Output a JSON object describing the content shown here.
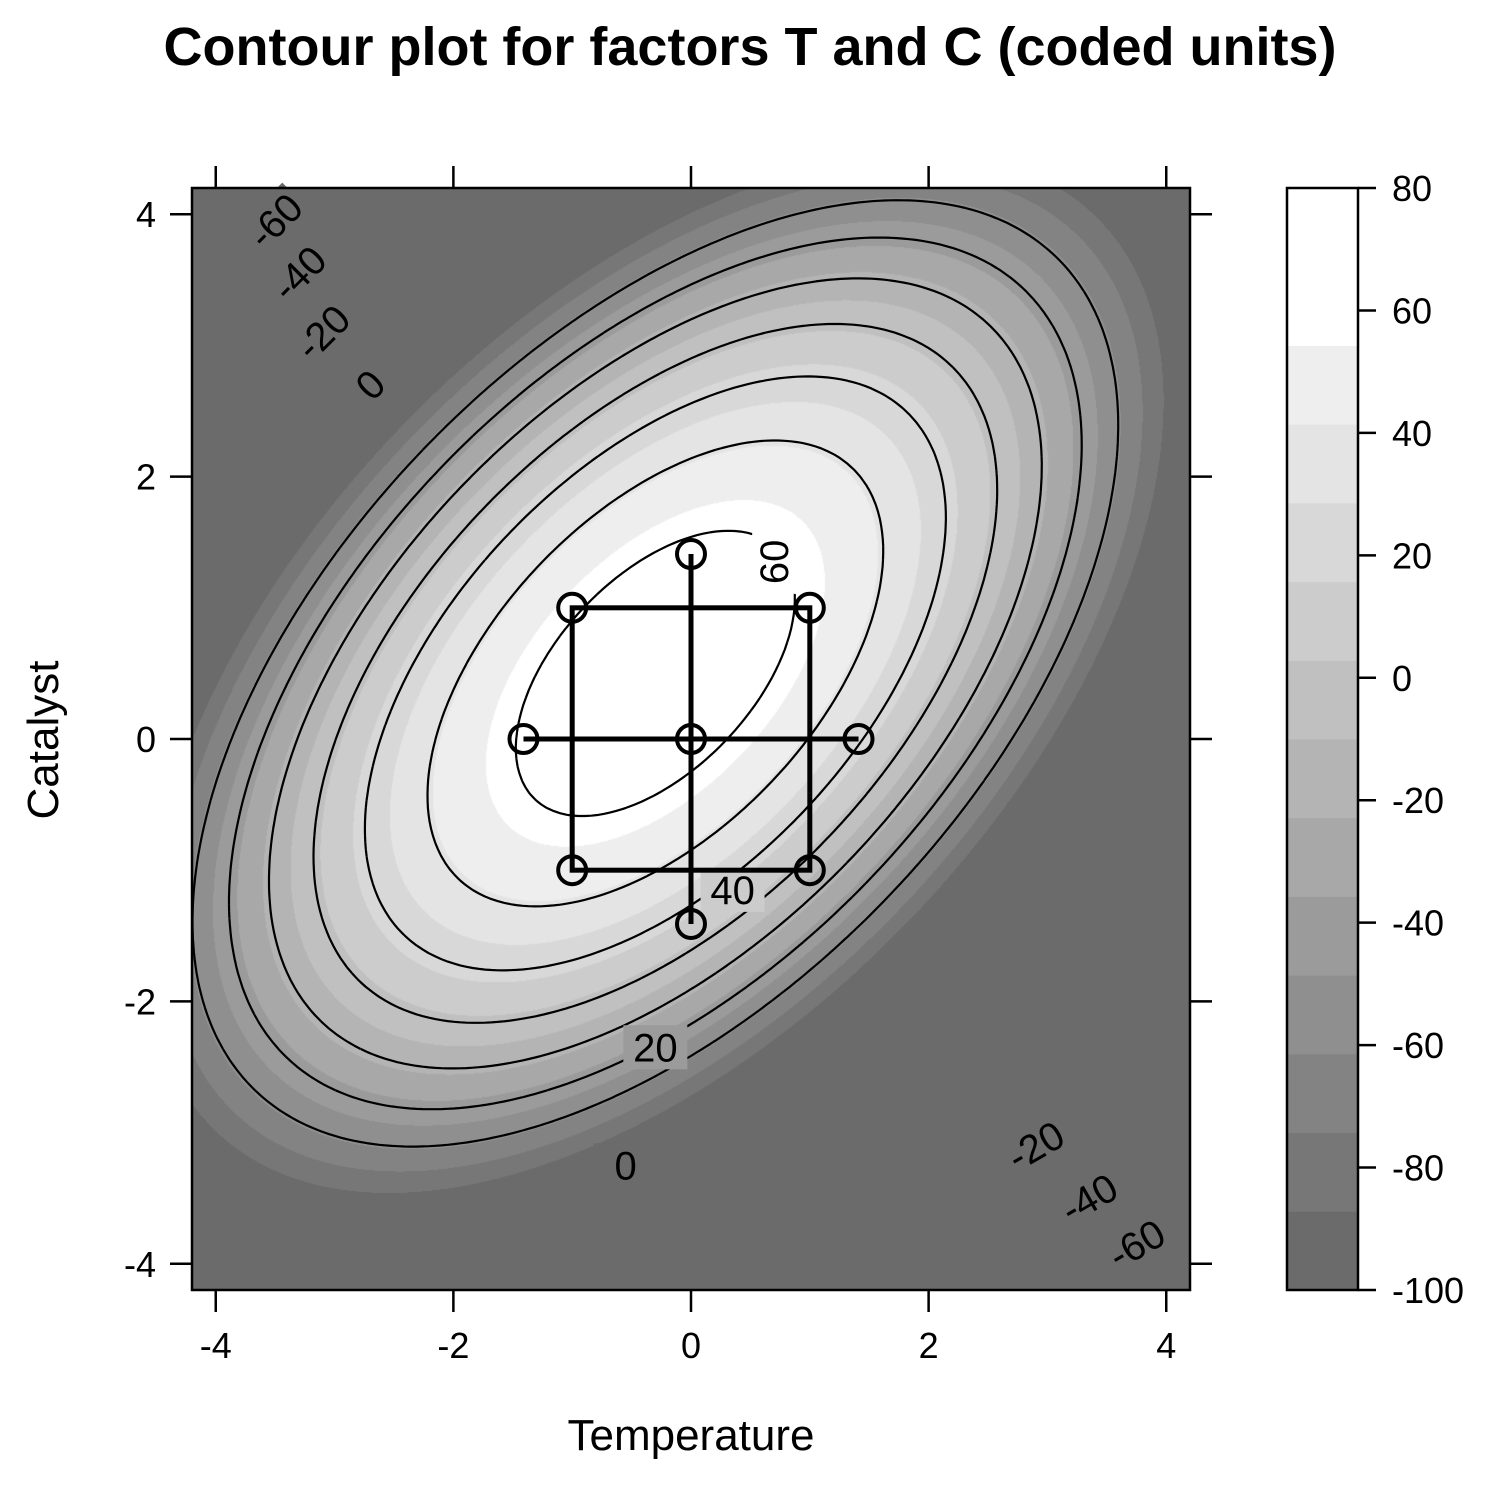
{
  "chart_data": {
    "type": "contour",
    "title": "Contour plot for factors T and C (coded units)",
    "xlabel": "Temperature",
    "ylabel": "Catalyst",
    "xlim": [
      -4.2,
      4.2
    ],
    "ylim": [
      -4.2,
      4.2
    ],
    "x_ticks": [
      -4,
      -2,
      0,
      2,
      4
    ],
    "y_ticks": [
      -4,
      -2,
      0,
      2,
      4
    ],
    "x_tick_labels": [
      "-4",
      "-2",
      "0",
      "2",
      "4"
    ],
    "y_tick_labels": [
      "-4",
      "-2",
      "0",
      "2",
      "4"
    ],
    "colorbar": {
      "range": [
        -100,
        80
      ],
      "ticks": [
        80,
        60,
        40,
        20,
        0,
        -20,
        -40,
        -60,
        -80,
        -100
      ],
      "tick_labels": [
        "80",
        "60",
        "40",
        "20",
        "0",
        "-20",
        "-40",
        "-60",
        "-80",
        "-100"
      ],
      "band_colors": [
        "#6b6b6b",
        "#777777",
        "#838383",
        "#8f8f8f",
        "#9b9b9b",
        "#a8a8a8",
        "#b4b4b4",
        "#c0c0c0",
        "#cccccc",
        "#d8d8d8",
        "#e4e4e4",
        "#eeeeee",
        "#ffffff",
        "#ffffff"
      ]
    },
    "contour_levels": [
      -60,
      -40,
      -20,
      0,
      20,
      40,
      60
    ],
    "contour_labels": [
      {
        "text": "-60",
        "x": -3.5,
        "y": 3.95,
        "angle": -45
      },
      {
        "text": "-40",
        "x": -3.3,
        "y": 3.55,
        "angle": -45
      },
      {
        "text": "-20",
        "x": -3.1,
        "y": 3.1,
        "angle": -45
      },
      {
        "text": "0",
        "x": -2.7,
        "y": 2.7,
        "angle": -45
      },
      {
        "text": "60",
        "x": 0.7,
        "y": 1.35,
        "angle": -90
      },
      {
        "text": "40",
        "x": 0.35,
        "y": -1.15,
        "angle": 0
      },
      {
        "text": "20",
        "x": -0.3,
        "y": -2.35,
        "angle": 0
      },
      {
        "text": "0",
        "x": -0.55,
        "y": -3.25,
        "angle": 0
      },
      {
        "text": "-20",
        "x": 2.9,
        "y": -3.1,
        "angle": -30
      },
      {
        "text": "-40",
        "x": 3.35,
        "y": -3.5,
        "angle": -30
      },
      {
        "text": "-60",
        "x": 3.75,
        "y": -3.85,
        "angle": -30
      }
    ],
    "design_points": [
      {
        "x": -1,
        "y": 1
      },
      {
        "x": 1,
        "y": 1
      },
      {
        "x": -1,
        "y": -1
      },
      {
        "x": 1,
        "y": -1
      },
      {
        "x": 0,
        "y": 0
      },
      {
        "x": -1.41,
        "y": 0
      },
      {
        "x": 1.41,
        "y": 0
      },
      {
        "x": 0,
        "y": 1.41
      },
      {
        "x": 0,
        "y": -1.41
      }
    ]
  }
}
